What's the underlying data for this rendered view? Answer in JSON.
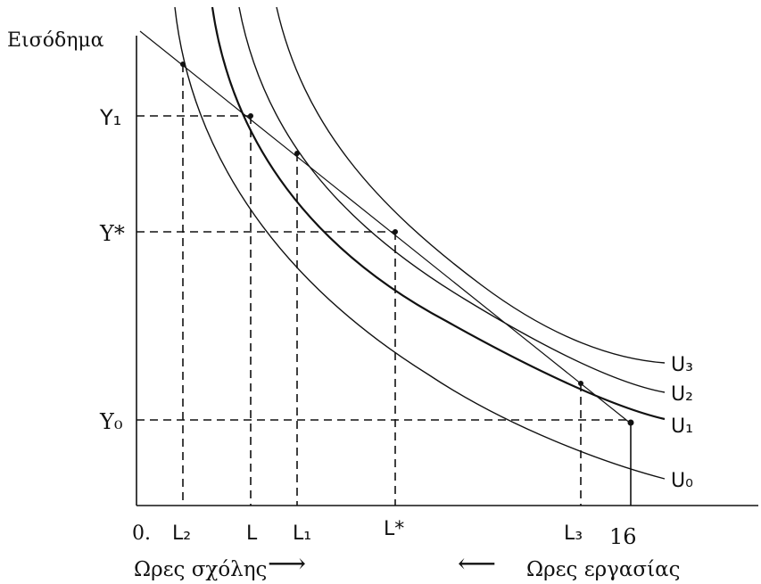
{
  "y_axis_label": "Εισόδημα",
  "y_ticks": [
    "Y₁",
    "Y*",
    "Y₀"
  ],
  "x_ticks": [
    "0.",
    "L₂",
    "L",
    "L₁",
    "L*",
    "L₃",
    "16"
  ],
  "curve_labels": [
    "U₃",
    "U₂",
    "U₁",
    "U₀"
  ],
  "leisure_label": "Ωρες σχόλης",
  "work_label": "Ωρες εργασίας",
  "arrow_right": "⟶",
  "arrow_left": "⟵"
}
